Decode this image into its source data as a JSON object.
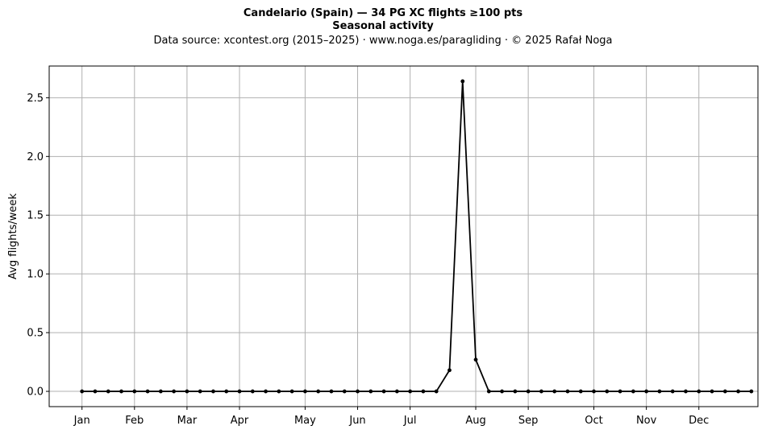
{
  "chart_data": {
    "type": "line",
    "title": "Candelario (Spain)  —  34 PG XC flights ≥100 pts",
    "subtitle": "Seasonal activity",
    "source": "Data source: xcontest.org (2015–2025)  ·  www.noga.es/paragliding  ·  © 2025 Rafał Noga",
    "xlabel": "",
    "ylabel": "Avg flights/week",
    "ylim": [
      -0.13,
      2.77
    ],
    "xlim": [
      0.5,
      54.5
    ],
    "yticks": [
      "0.0",
      "0.5",
      "1.0",
      "1.5",
      "2.0",
      "2.5"
    ],
    "ytick_values": [
      0,
      0.5,
      1.0,
      1.5,
      2.0,
      2.5
    ],
    "xticks": [
      {
        "label": "Jan",
        "week": 3
      },
      {
        "label": "Feb",
        "week": 7
      },
      {
        "label": "Mar",
        "week": 11
      },
      {
        "label": "Apr",
        "week": 15
      },
      {
        "label": "May",
        "week": 20
      },
      {
        "label": "Jun",
        "week": 24
      },
      {
        "label": "Jul",
        "week": 28
      },
      {
        "label": "Aug",
        "week": 33
      },
      {
        "label": "Sep",
        "week": 37
      },
      {
        "label": "Oct",
        "week": 42
      },
      {
        "label": "Nov",
        "week": 46
      },
      {
        "label": "Dec",
        "week": 50
      }
    ],
    "grid": true,
    "color": "#000000",
    "grid_color": "#b0b0b0",
    "x": [
      3,
      4,
      5,
      6,
      7,
      8,
      9,
      10,
      11,
      12,
      13,
      14,
      15,
      16,
      17,
      18,
      19,
      20,
      21,
      22,
      23,
      24,
      25,
      26,
      27,
      28,
      29,
      30,
      31,
      32,
      33,
      34,
      35,
      36,
      37,
      38,
      39,
      40,
      41,
      42,
      43,
      44,
      45,
      46,
      47,
      48,
      49,
      50,
      51,
      52,
      53,
      54
    ],
    "values": [
      0,
      0,
      0,
      0,
      0,
      0,
      0,
      0,
      0,
      0,
      0,
      0,
      0,
      0,
      0,
      0,
      0,
      0,
      0,
      0,
      0,
      0,
      0,
      0,
      0,
      0,
      0,
      0,
      0.18,
      2.64,
      0.27,
      0,
      0,
      0,
      0,
      0,
      0,
      0,
      0,
      0,
      0,
      0,
      0,
      0,
      0,
      0,
      0,
      0,
      0,
      0,
      0,
      0
    ]
  }
}
